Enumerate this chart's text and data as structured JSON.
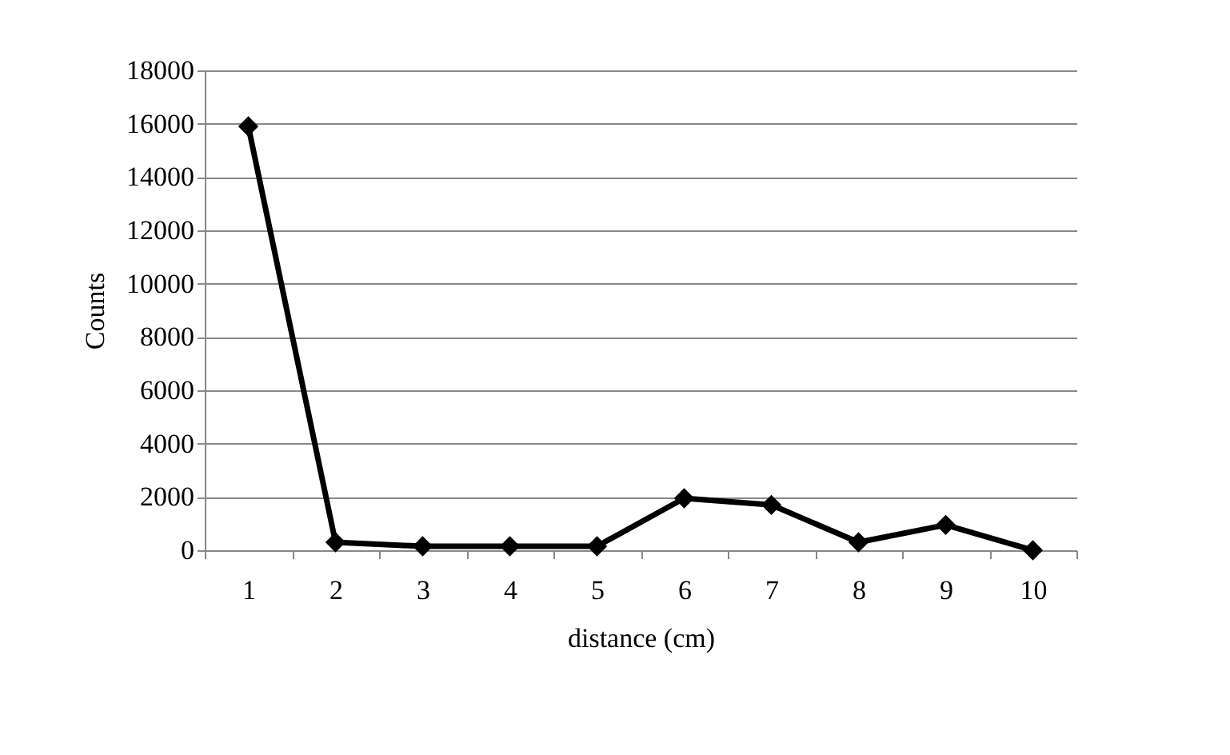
{
  "chart_data": {
    "type": "line",
    "xlabel": "distance (cm)",
    "ylabel": "Counts",
    "categories": [
      "1",
      "2",
      "3",
      "4",
      "5",
      "6",
      "7",
      "8",
      "9",
      "10"
    ],
    "series": [
      {
        "color": "#000000",
        "values": [
          15900,
          300,
          150,
          150,
          150,
          1950,
          1700,
          300,
          950,
          0
        ]
      }
    ],
    "ylim": [
      0,
      18000
    ],
    "yticks": [
      0,
      2000,
      4000,
      6000,
      8000,
      10000,
      12000,
      14000,
      16000,
      18000
    ],
    "grid": "y",
    "marker": "diamond",
    "line_style": "solid"
  }
}
